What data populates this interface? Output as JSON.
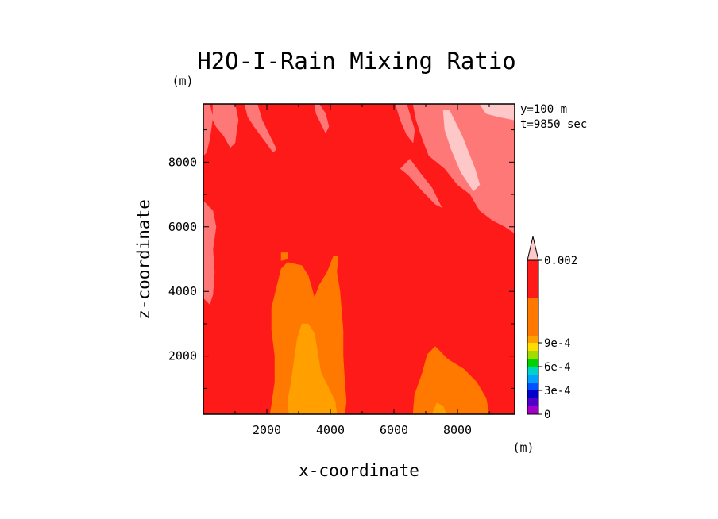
{
  "chart_data": {
    "type": "heatmap",
    "title": "H2O-I-Rain Mixing Ratio",
    "xlabel": "x-coordinate",
    "ylabel": "z-coordinate",
    "x_unit": "(m)",
    "y_unit": "(m)",
    "annotations": [
      "y=100 m",
      "t=9850 sec"
    ],
    "xlim": [
      0,
      9800
    ],
    "ylim": [
      200,
      9800
    ],
    "x_ticks": [
      2000,
      4000,
      6000,
      8000
    ],
    "y_ticks": [
      2000,
      4000,
      6000,
      8000
    ],
    "x_tick_labels": [
      "2000",
      "4000",
      "6000",
      "8000"
    ],
    "y_tick_labels": [
      "2000",
      "4000",
      "6000",
      "8000"
    ],
    "colorbar": {
      "placement": "right",
      "levels": [
        0,
        0.0001,
        0.0002,
        0.0003,
        0.0004,
        0.0005,
        0.0006,
        0.0007,
        0.0008,
        0.0009,
        0.001,
        0.0015,
        0.002
      ],
      "colors": [
        "#a000c8",
        "#5000c8",
        "#0000c8",
        "#0050ff",
        "#00a0ff",
        "#00d2c8",
        "#00d200",
        "#a0dc00",
        "#ffdc00",
        "#ffa000",
        "#ff7800",
        "#ff1a1a",
        "#ff7878"
      ],
      "extend_color": "#ffc8c8",
      "labels": [
        {
          "value": 0,
          "text": "0"
        },
        {
          "value": 0.0003,
          "text": "3e-4"
        },
        {
          "value": 0.0006,
          "text": "6e-4"
        },
        {
          "value": 0.0009,
          "text": "9e-4"
        },
        {
          "value": 0.002,
          "text": "0.002"
        }
      ]
    },
    "regions": [
      {
        "name": "background",
        "level": 0.0015,
        "color": "#ff1a1a",
        "points": [
          [
            0,
            200
          ],
          [
            9800,
            200
          ],
          [
            9800,
            9800
          ],
          [
            0,
            9800
          ]
        ]
      },
      {
        "name": "light-red-left-edge",
        "level": 0.002,
        "color": "#ff7878",
        "points": [
          [
            0,
            6800
          ],
          [
            300,
            6500
          ],
          [
            400,
            6000
          ],
          [
            300,
            5300
          ],
          [
            350,
            4600
          ],
          [
            300,
            3900
          ],
          [
            200,
            3600
          ],
          [
            100,
            3700
          ],
          [
            0,
            3800
          ]
        ]
      },
      {
        "name": "light-red-top-left-streak",
        "level": 0.002,
        "color": "#ff7878",
        "points": [
          [
            300,
            9800
          ],
          [
            1000,
            9800
          ],
          [
            1100,
            9300
          ],
          [
            1050,
            9000
          ],
          [
            1000,
            8600
          ],
          [
            850,
            8450
          ],
          [
            650,
            8800
          ],
          [
            400,
            9100
          ],
          [
            300,
            9300
          ]
        ]
      },
      {
        "name": "light-red-top-left-band",
        "level": 0.002,
        "color": "#ff7878",
        "points": [
          [
            0,
            9800
          ],
          [
            200,
            9800
          ],
          [
            300,
            9400
          ],
          [
            200,
            8700
          ],
          [
            100,
            8300
          ],
          [
            0,
            8200
          ]
        ]
      },
      {
        "name": "light-red-upper-streak-1",
        "level": 0.002,
        "color": "#ff7878",
        "points": [
          [
            1300,
            9800
          ],
          [
            1700,
            9800
          ],
          [
            1850,
            9300
          ],
          [
            2050,
            8900
          ],
          [
            2300,
            8400
          ],
          [
            2200,
            8300
          ],
          [
            1900,
            8700
          ],
          [
            1600,
            9100
          ],
          [
            1400,
            9400
          ]
        ]
      },
      {
        "name": "light-red-upper-streak-2",
        "level": 0.002,
        "color": "#ff7878",
        "points": [
          [
            3500,
            9800
          ],
          [
            3650,
            9800
          ],
          [
            3850,
            9500
          ],
          [
            3950,
            9100
          ],
          [
            3850,
            8900
          ],
          [
            3700,
            9200
          ],
          [
            3550,
            9500
          ]
        ]
      },
      {
        "name": "light-red-upper-streak-3",
        "level": 0.002,
        "color": "#ff7878",
        "points": [
          [
            6050,
            9800
          ],
          [
            6400,
            9800
          ],
          [
            6650,
            9000
          ],
          [
            6600,
            8600
          ],
          [
            6400,
            8850
          ],
          [
            6200,
            9300
          ]
        ]
      },
      {
        "name": "light-red-upper-right-large",
        "level": 0.002,
        "color": "#ff7878",
        "points": [
          [
            6600,
            9800
          ],
          [
            9800,
            9800
          ],
          [
            9800,
            5800
          ],
          [
            9500,
            6000
          ],
          [
            9100,
            6200
          ],
          [
            8700,
            6500
          ],
          [
            8400,
            7000
          ],
          [
            8000,
            7300
          ],
          [
            7600,
            7800
          ],
          [
            7100,
            8200
          ],
          [
            6900,
            8700
          ],
          [
            6700,
            9300
          ]
        ]
      },
      {
        "name": "light-red-upper-right-finger",
        "level": 0.002,
        "color": "#ff7878",
        "points": [
          [
            6200,
            7800
          ],
          [
            6450,
            7600
          ],
          [
            6900,
            7100
          ],
          [
            7300,
            6700
          ],
          [
            7500,
            6600
          ],
          [
            7200,
            7200
          ],
          [
            6800,
            7700
          ],
          [
            6500,
            8100
          ]
        ]
      },
      {
        "name": "pale-pink-top-right-streak",
        "level": 0.0025,
        "color": "#ffc8c8",
        "points": [
          [
            7550,
            9600
          ],
          [
            7750,
            9600
          ],
          [
            8150,
            8800
          ],
          [
            8550,
            7800
          ],
          [
            8700,
            7300
          ],
          [
            8500,
            7100
          ],
          [
            8100,
            7700
          ],
          [
            7800,
            8400
          ],
          [
            7600,
            9000
          ]
        ]
      },
      {
        "name": "pale-pink-top-right-corner",
        "level": 0.0025,
        "color": "#ffc8c8",
        "points": [
          [
            8700,
            9800
          ],
          [
            9800,
            9800
          ],
          [
            9800,
            9300
          ],
          [
            9300,
            9400
          ],
          [
            8900,
            9500
          ]
        ]
      },
      {
        "name": "orange-left-column",
        "level": 0.001,
        "color": "#ff7800",
        "points": [
          [
            2100,
            200
          ],
          [
            4450,
            200
          ],
          [
            4500,
            600
          ],
          [
            4450,
            1200
          ],
          [
            4400,
            2000
          ],
          [
            4400,
            2800
          ],
          [
            4350,
            3400
          ],
          [
            4300,
            4000
          ],
          [
            4200,
            4600
          ],
          [
            4250,
            5100
          ],
          [
            4100,
            5100
          ],
          [
            3900,
            4600
          ],
          [
            3650,
            4200
          ],
          [
            3500,
            3800
          ],
          [
            3300,
            4500
          ],
          [
            3100,
            4800
          ],
          [
            2650,
            4900
          ],
          [
            2450,
            4700
          ],
          [
            2300,
            4100
          ],
          [
            2150,
            3500
          ],
          [
            2150,
            2800
          ],
          [
            2250,
            2000
          ],
          [
            2250,
            1200
          ],
          [
            2150,
            500
          ]
        ]
      },
      {
        "name": "orange-left-tip",
        "level": 0.001,
        "color": "#ff7800",
        "points": [
          [
            2450,
            5200
          ],
          [
            2650,
            5200
          ],
          [
            2650,
            5000
          ],
          [
            2450,
            4950
          ]
        ]
      },
      {
        "name": "orange-right-patch",
        "level": 0.001,
        "color": "#ff7800",
        "points": [
          [
            6600,
            200
          ],
          [
            9000,
            200
          ],
          [
            8900,
            700
          ],
          [
            8600,
            1200
          ],
          [
            8200,
            1600
          ],
          [
            7700,
            1900
          ],
          [
            7300,
            2300
          ],
          [
            7050,
            2050
          ],
          [
            6900,
            1500
          ],
          [
            6650,
            800
          ]
        ]
      },
      {
        "name": "yellow-orange-core",
        "level": 0.0009,
        "color": "#ffa000",
        "points": [
          [
            2700,
            200
          ],
          [
            4200,
            200
          ],
          [
            4150,
            600
          ],
          [
            3900,
            1100
          ],
          [
            3700,
            1500
          ],
          [
            3600,
            2100
          ],
          [
            3500,
            2700
          ],
          [
            3300,
            3000
          ],
          [
            3100,
            3000
          ],
          [
            2950,
            2500
          ],
          [
            2850,
            1800
          ],
          [
            2750,
            1100
          ],
          [
            2650,
            600
          ]
        ]
      },
      {
        "name": "yellow-orange-patch-right",
        "level": 0.0009,
        "color": "#ffa000",
        "points": [
          [
            7200,
            200
          ],
          [
            7650,
            200
          ],
          [
            7550,
            450
          ],
          [
            7350,
            550
          ]
        ]
      }
    ]
  }
}
